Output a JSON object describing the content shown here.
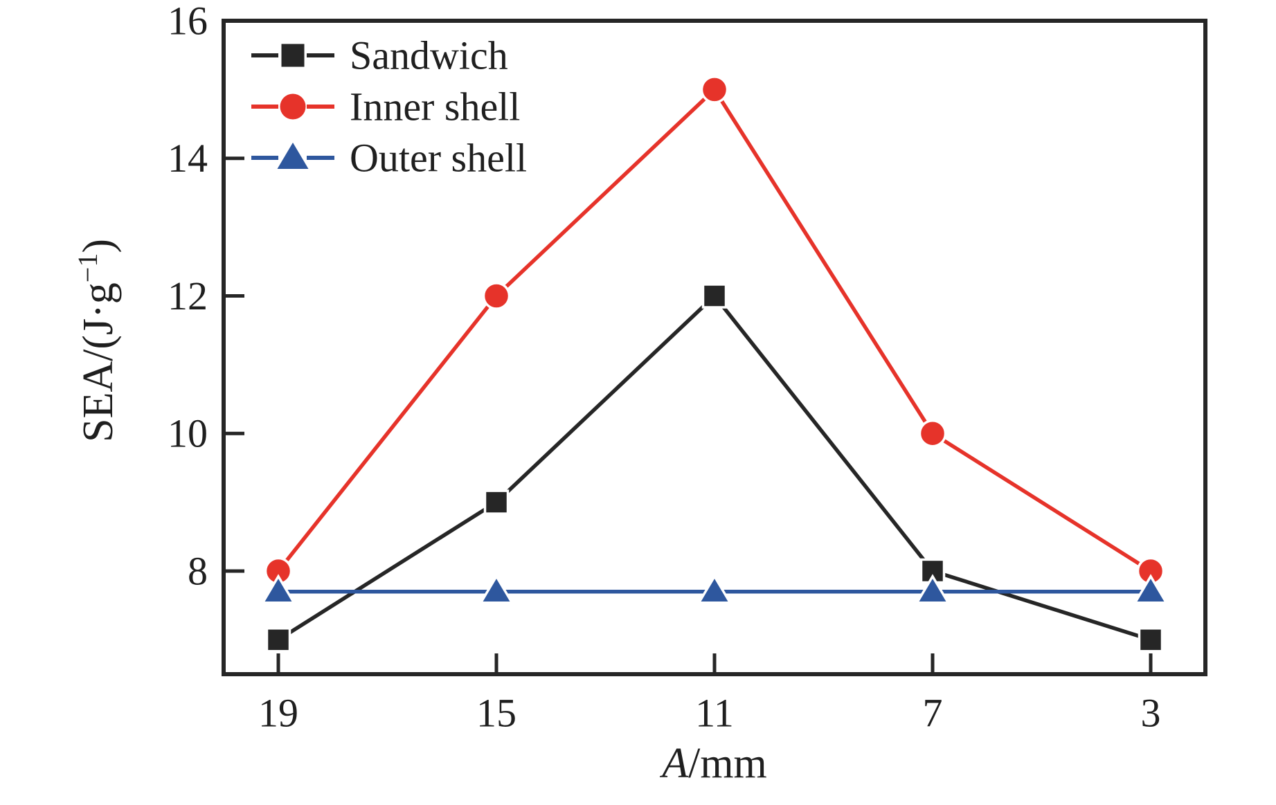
{
  "figure": {
    "background": "#ffffff",
    "text_color": "#1f1f1f",
    "axis_color": "#262626"
  },
  "chart_data": {
    "type": "line",
    "title": "",
    "xlabel": "A/mm",
    "xlabel_parts": {
      "italic": "A",
      "rest": "/mm"
    },
    "ylabel": "SEA/(J·g−1)",
    "ylabel_parts": {
      "pre": "SEA/(J·g",
      "sup": "−1",
      "post": ")"
    },
    "categories": [
      19,
      15,
      11,
      7,
      3
    ],
    "x_tick_labels": [
      "19",
      "15",
      "11",
      "7",
      "3"
    ],
    "y_ticks": [
      8,
      10,
      12,
      14,
      16
    ],
    "y_tick_labels": [
      "8",
      "10",
      "12",
      "14",
      "16"
    ],
    "ylim": [
      6.5,
      16
    ],
    "grid": false,
    "legend": {
      "position": "upper-left-inside"
    },
    "series": [
      {
        "name": "Sandwich",
        "color": "#262626",
        "marker": "square",
        "values": [
          7.0,
          9.0,
          12.0,
          8.0,
          7.0
        ]
      },
      {
        "name": "Inner shell",
        "color": "#e6332a",
        "marker": "circle",
        "values": [
          8.0,
          12.0,
          15.0,
          10.0,
          8.0
        ]
      },
      {
        "name": "Outer shell",
        "color": "#2e579e",
        "marker": "triangle",
        "values": [
          7.7,
          7.7,
          7.7,
          7.7,
          7.7
        ]
      }
    ]
  }
}
